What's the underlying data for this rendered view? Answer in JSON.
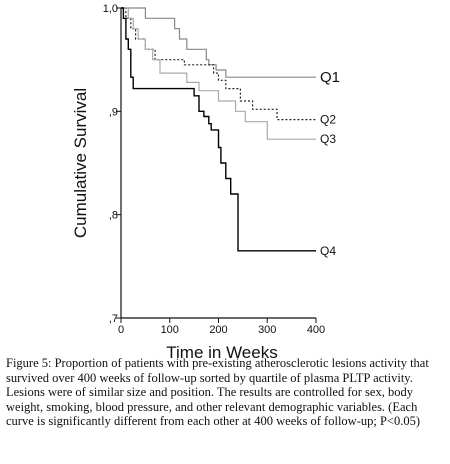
{
  "chart_data": {
    "type": "line",
    "step": true,
    "xlabel": "Time in Weeks",
    "ylabel": "Cumulative Survival",
    "xlim": [
      0,
      400
    ],
    "ylim": [
      0.7,
      1.0
    ],
    "x_ticks": [
      0,
      100,
      200,
      300,
      400
    ],
    "x_tick_labels": [
      "0",
      "100",
      "200",
      "300",
      "400"
    ],
    "y_ticks": [
      0.7,
      0.8,
      0.9,
      1.0
    ],
    "y_tick_labels": [
      ",7",
      ",8",
      ",9",
      "1,0"
    ],
    "grid": false,
    "series": [
      {
        "name": "Q1",
        "color": "#888888",
        "dash": "solid",
        "x": [
          0,
          50,
          50,
          110,
          110,
          120,
          120,
          135,
          135,
          175,
          175,
          180,
          180,
          195,
          195,
          215,
          215,
          400
        ],
        "y": [
          1.0,
          1.0,
          0.99,
          0.99,
          0.98,
          0.98,
          0.97,
          0.97,
          0.96,
          0.96,
          0.95,
          0.95,
          0.945,
          0.945,
          0.94,
          0.94,
          0.933,
          0.933
        ]
      },
      {
        "name": "Q2",
        "color": "#222222",
        "dash": "dotted",
        "x": [
          0,
          10,
          10,
          20,
          20,
          30,
          30,
          50,
          50,
          70,
          70,
          130,
          130,
          190,
          190,
          200,
          200,
          215,
          215,
          245,
          245,
          270,
          270,
          320,
          320,
          400
        ],
        "y": [
          1.0,
          1.0,
          0.99,
          0.99,
          0.98,
          0.98,
          0.97,
          0.97,
          0.96,
          0.96,
          0.95,
          0.95,
          0.945,
          0.945,
          0.937,
          0.937,
          0.93,
          0.93,
          0.922,
          0.922,
          0.91,
          0.91,
          0.902,
          0.902,
          0.892,
          0.892
        ]
      },
      {
        "name": "Q3",
        "color": "#aaaaaa",
        "dash": "solid",
        "x": [
          0,
          15,
          15,
          25,
          25,
          35,
          35,
          50,
          50,
          65,
          65,
          80,
          80,
          135,
          135,
          160,
          160,
          200,
          200,
          235,
          235,
          255,
          255,
          300,
          300,
          400
        ],
        "y": [
          1.0,
          1.0,
          0.99,
          0.99,
          0.98,
          0.98,
          0.97,
          0.97,
          0.96,
          0.96,
          0.95,
          0.95,
          0.937,
          0.937,
          0.928,
          0.928,
          0.92,
          0.92,
          0.91,
          0.91,
          0.9,
          0.9,
          0.89,
          0.89,
          0.873,
          0.873
        ]
      },
      {
        "name": "Q4",
        "color": "#000000",
        "dash": "solid",
        "x": [
          0,
          5,
          5,
          10,
          10,
          15,
          15,
          20,
          20,
          25,
          25,
          150,
          150,
          160,
          160,
          170,
          170,
          180,
          180,
          185,
          185,
          200,
          200,
          205,
          205,
          215,
          215,
          225,
          225,
          240,
          240,
          400
        ],
        "y": [
          1.0,
          1.0,
          0.99,
          0.99,
          0.97,
          0.97,
          0.96,
          0.96,
          0.933,
          0.933,
          0.922,
          0.922,
          0.915,
          0.915,
          0.9,
          0.9,
          0.895,
          0.895,
          0.888,
          0.888,
          0.882,
          0.882,
          0.865,
          0.865,
          0.85,
          0.85,
          0.835,
          0.835,
          0.82,
          0.82,
          0.765,
          0.765
        ]
      }
    ]
  },
  "caption": "Figure 5: Proportion of patients with pre-existing atherosclerotic lesions activity that survived over 400 weeks of follow-up sorted by quartile of plasma PLTP activity.  Lesions were of similar size and position. The results are controlled for sex, body weight, smoking, blood pressure, and other relevant demographic variables.  (Each curve is significantly different from each other at 400 weeks of follow-up; P<0.05)"
}
